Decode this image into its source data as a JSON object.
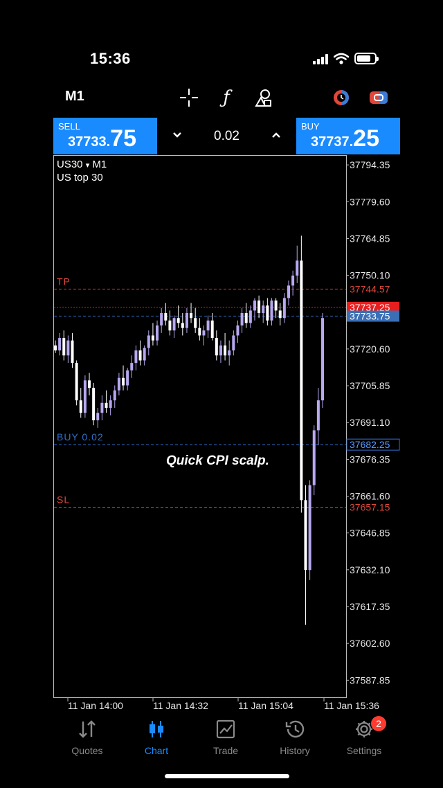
{
  "status_bar": {
    "time": "15:36"
  },
  "toolbar": {
    "timeframe": "M1",
    "icons": [
      "crosshair-icon",
      "function-icon",
      "objects-icon",
      "algo-trading-icon",
      "one-click-trading-icon"
    ]
  },
  "trade_panel": {
    "sell_label": "SELL",
    "sell_price_prefix": "37733.",
    "sell_price_big": "75",
    "volume": "0.02",
    "buy_label": "BUY",
    "buy_price_prefix": "37737.",
    "buy_price_big": "25"
  },
  "chart": {
    "symbol": "US30",
    "symbol_arrow": "▾",
    "period": "M1",
    "description": "US top 30",
    "annotation": "Quick CPI scalp."
  },
  "chart_data": {
    "type": "candlestick",
    "ylim": [
      37581,
      37798
    ],
    "y_ticks": [
      "37794.35",
      "37779.60",
      "37764.85",
      "37750.10",
      "37720.60",
      "37705.85",
      "37691.10",
      "37676.35",
      "37661.60",
      "37646.85",
      "37632.10",
      "37617.35",
      "37602.60",
      "37587.85"
    ],
    "x_ticks": [
      "11 Jan 14:00",
      "11 Jan 14:32",
      "11 Jan 15:04",
      "11 Jan 15:36"
    ],
    "levels": [
      {
        "name": "TP",
        "label": "TP",
        "price": "37744.57",
        "value": 37744.57,
        "color": "#e0473b"
      },
      {
        "name": "ask",
        "label": "",
        "price": "37737.25",
        "value": 37737.25,
        "color": "#e61e1e"
      },
      {
        "name": "bid",
        "label": "",
        "price": "37733.75",
        "value": 37733.75,
        "color": "#3a7bd5"
      },
      {
        "name": "entry",
        "label": "BUY 0.02",
        "price": "37682.25",
        "value": 37682.25,
        "color": "#2f6fd0"
      },
      {
        "name": "SL",
        "label": "SL",
        "price": "37657.15",
        "value": 37657.15,
        "color": "#e0473b"
      }
    ],
    "colors": {
      "bull": "#b8a8f0",
      "bear": "#ffffff"
    },
    "candles": [
      [
        37722,
        37724,
        37719,
        37720
      ],
      [
        37720,
        37727,
        37718,
        37725
      ],
      [
        37725,
        37728,
        37716,
        37718
      ],
      [
        37718,
        37726,
        37715,
        37724
      ],
      [
        37724,
        37727,
        37713,
        37715
      ],
      [
        37715,
        37716,
        37698,
        37700
      ],
      [
        37700,
        37705,
        37693,
        37695
      ],
      [
        37695,
        37710,
        37693,
        37708
      ],
      [
        37708,
        37711,
        37702,
        37705
      ],
      [
        37705,
        37707,
        37690,
        37692
      ],
      [
        37692,
        37697,
        37689,
        37695
      ],
      [
        37695,
        37702,
        37692,
        37699
      ],
      [
        37699,
        37704,
        37695,
        37697
      ],
      [
        37697,
        37702,
        37694,
        37700
      ],
      [
        37700,
        37706,
        37697,
        37704
      ],
      [
        37704,
        37711,
        37702,
        37709
      ],
      [
        37709,
        37714,
        37704,
        37706
      ],
      [
        37706,
        37713,
        37704,
        37712
      ],
      [
        37712,
        37718,
        37709,
        37715
      ],
      [
        37715,
        37722,
        37712,
        37720
      ],
      [
        37720,
        37724,
        37714,
        37716
      ],
      [
        37716,
        37722,
        37714,
        37721
      ],
      [
        37721,
        37728,
        37718,
        37726
      ],
      [
        37726,
        37731,
        37722,
        37724
      ],
      [
        37724,
        37732,
        37722,
        37730
      ],
      [
        37730,
        37737,
        37727,
        37735
      ],
      [
        37735,
        37739,
        37730,
        37732
      ],
      [
        37732,
        37736,
        37726,
        37728
      ],
      [
        37728,
        37734,
        37725,
        37733
      ],
      [
        37733,
        37738,
        37729,
        37731
      ],
      [
        37731,
        37735,
        37726,
        37729
      ],
      [
        37729,
        37737,
        37727,
        37735
      ],
      [
        37735,
        37739,
        37731,
        37733
      ],
      [
        37733,
        37737,
        37727,
        37729
      ],
      [
        37729,
        37733,
        37724,
        37726
      ],
      [
        37726,
        37730,
        37722,
        37728
      ],
      [
        37728,
        37734,
        37725,
        37732
      ],
      [
        37732,
        37735,
        37724,
        37725
      ],
      [
        37725,
        37728,
        37716,
        37718
      ],
      [
        37718,
        37724,
        37715,
        37722
      ],
      [
        37722,
        37727,
        37716,
        37718
      ],
      [
        37718,
        37724,
        37714,
        37720
      ],
      [
        37720,
        37728,
        37718,
        37726
      ],
      [
        37726,
        37732,
        37723,
        37730
      ],
      [
        37730,
        37737,
        37727,
        37735
      ],
      [
        37735,
        37739,
        37729,
        37731
      ],
      [
        37731,
        37738,
        37729,
        37736
      ],
      [
        37736,
        37741,
        37732,
        37740
      ],
      [
        37740,
        37742,
        37733,
        37735
      ],
      [
        37735,
        37740,
        37731,
        37738
      ],
      [
        37738,
        37741,
        37730,
        37732
      ],
      [
        37732,
        37741,
        37730,
        37740
      ],
      [
        37740,
        37741,
        37733,
        37736
      ],
      [
        37736,
        37739,
        37730,
        37733
      ],
      [
        37733,
        37743,
        37731,
        37741
      ],
      [
        37741,
        37748,
        37738,
        37746
      ],
      [
        37746,
        37752,
        37742,
        37750
      ],
      [
        37750,
        37762,
        37747,
        37756
      ],
      [
        37756,
        37766,
        37655,
        37660
      ],
      [
        37660,
        37666,
        37610,
        37632
      ],
      [
        37632,
        37668,
        37628,
        37666
      ],
      [
        37666,
        37690,
        37662,
        37688
      ],
      [
        37688,
        37705,
        37682,
        37700
      ],
      [
        37700,
        37735,
        37697,
        37733
      ]
    ]
  },
  "nav": {
    "items": [
      {
        "label": "Quotes"
      },
      {
        "label": "Chart"
      },
      {
        "label": "Trade"
      },
      {
        "label": "History"
      },
      {
        "label": "Settings",
        "badge": "2"
      }
    ]
  }
}
